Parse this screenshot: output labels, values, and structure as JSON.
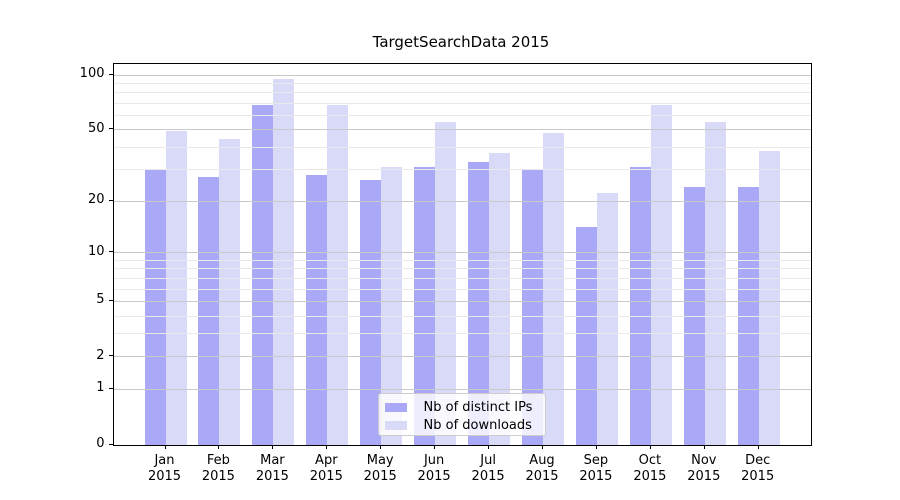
{
  "title": "TargetSearchData 2015",
  "chart_data": {
    "type": "bar",
    "title": "TargetSearchData 2015",
    "categories": [
      "Jan",
      "Feb",
      "Mar",
      "Apr",
      "May",
      "Jun",
      "Jul",
      "Aug",
      "Sep",
      "Oct",
      "Nov",
      "Dec"
    ],
    "x_year_line": "2015",
    "series": [
      {
        "name": "Nb of distinct IPs",
        "color": "#a9a9f8",
        "values": [
          30,
          27,
          68,
          28,
          26,
          31,
          33,
          30,
          14,
          31,
          24,
          24
        ]
      },
      {
        "name": "Nb of downloads",
        "color": "#d9d9f8",
        "values": [
          49,
          44,
          95,
          68,
          31,
          55,
          37,
          48,
          22,
          68,
          55,
          38
        ]
      }
    ],
    "yscale": "symlog-log1p",
    "ylim": [
      0,
      115
    ],
    "y_major_ticks": [
      0,
      1,
      2,
      5,
      10,
      20,
      50,
      100
    ],
    "y_minor_ticks": [
      3,
      4,
      6,
      7,
      8,
      9,
      30,
      40,
      60,
      70,
      80,
      90
    ],
    "grid": "major and minor horizontal gridlines, drawn over bars",
    "legend_position": "lower center inside plot",
    "legend_entries": [
      "Nb of distinct IPs",
      "Nb of downloads"
    ]
  }
}
